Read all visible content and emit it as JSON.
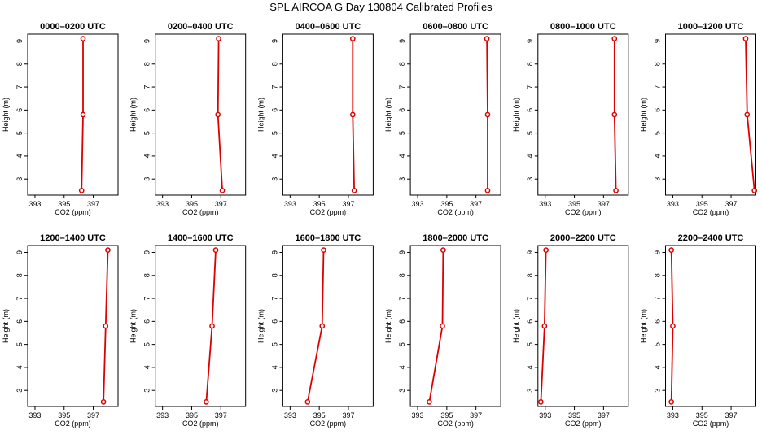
{
  "title": "SPL AIRCOA G  Day 130804  Calibrated Profiles",
  "colors": {
    "line": "#dd0000",
    "axis": "#000000"
  },
  "chart_data": [
    {
      "type": "line",
      "title": "0000–0200 UTC",
      "xlabel": "CO2 (ppm)",
      "ylabel": "Height (m)",
      "xlim": [
        392.5,
        398.7
      ],
      "ylim": [
        2.3,
        9.3
      ],
      "xticks": [
        393,
        395,
        397
      ],
      "yticks": [
        3,
        4,
        5,
        6,
        7,
        8,
        9
      ],
      "x": [
        396.2,
        396.3,
        396.3
      ],
      "y": [
        2.5,
        5.8,
        9.1
      ]
    },
    {
      "type": "line",
      "title": "0200–0400 UTC",
      "xlabel": "CO2 (ppm)",
      "ylabel": "Height (m)",
      "xlim": [
        392.5,
        398.7
      ],
      "ylim": [
        2.3,
        9.3
      ],
      "xticks": [
        393,
        395,
        397
      ],
      "yticks": [
        3,
        4,
        5,
        6,
        7,
        8,
        9
      ],
      "x": [
        397.1,
        396.8,
        396.85
      ],
      "y": [
        2.5,
        5.8,
        9.1
      ]
    },
    {
      "type": "line",
      "title": "0400–0600 UTC",
      "xlabel": "CO2 (ppm)",
      "ylabel": "Height (m)",
      "xlim": [
        392.5,
        398.7
      ],
      "ylim": [
        2.3,
        9.3
      ],
      "xticks": [
        393,
        395,
        397
      ],
      "yticks": [
        3,
        4,
        5,
        6,
        7,
        8,
        9
      ],
      "x": [
        397.4,
        397.3,
        397.3
      ],
      "y": [
        2.5,
        5.8,
        9.1
      ]
    },
    {
      "type": "line",
      "title": "0600–0800 UTC",
      "xlabel": "CO2 (ppm)",
      "ylabel": "Height (m)",
      "xlim": [
        392.5,
        398.7
      ],
      "ylim": [
        2.3,
        9.3
      ],
      "xticks": [
        393,
        395,
        397
      ],
      "yticks": [
        3,
        4,
        5,
        6,
        7,
        8,
        9
      ],
      "x": [
        397.8,
        397.8,
        397.75
      ],
      "y": [
        2.5,
        5.8,
        9.1
      ]
    },
    {
      "type": "line",
      "title": "0800–1000 UTC",
      "xlabel": "CO2 (ppm)",
      "ylabel": "Height (m)",
      "xlim": [
        392.5,
        398.7
      ],
      "ylim": [
        2.3,
        9.3
      ],
      "xticks": [
        393,
        395,
        397
      ],
      "yticks": [
        3,
        4,
        5,
        6,
        7,
        8,
        9
      ],
      "x": [
        397.85,
        397.75,
        397.75
      ],
      "y": [
        2.5,
        5.8,
        9.1
      ]
    },
    {
      "type": "line",
      "title": "1000–1200 UTC",
      "xlabel": "CO2 (ppm)",
      "ylabel": "Height (m)",
      "xlim": [
        392.5,
        398.7
      ],
      "ylim": [
        2.3,
        9.3
      ],
      "xticks": [
        393,
        395,
        397
      ],
      "yticks": [
        3,
        4,
        5,
        6,
        7,
        8,
        9
      ],
      "x": [
        398.6,
        398.1,
        398.0
      ],
      "y": [
        2.5,
        5.8,
        9.1
      ]
    },
    {
      "type": "line",
      "title": "1200–1400 UTC",
      "xlabel": "CO2 (ppm)",
      "ylabel": "Height (m)",
      "xlim": [
        392.5,
        398.7
      ],
      "ylim": [
        2.3,
        9.3
      ],
      "xticks": [
        393,
        395,
        397
      ],
      "yticks": [
        3,
        4,
        5,
        6,
        7,
        8,
        9
      ],
      "x": [
        397.7,
        397.85,
        398.0
      ],
      "y": [
        2.5,
        5.8,
        9.1
      ]
    },
    {
      "type": "line",
      "title": "1400–1600 UTC",
      "xlabel": "CO2 (ppm)",
      "ylabel": "Height (m)",
      "xlim": [
        392.5,
        398.7
      ],
      "ylim": [
        2.3,
        9.3
      ],
      "xticks": [
        393,
        395,
        397
      ],
      "yticks": [
        3,
        4,
        5,
        6,
        7,
        8,
        9
      ],
      "x": [
        396.0,
        396.4,
        396.65
      ],
      "y": [
        2.5,
        5.8,
        9.1
      ]
    },
    {
      "type": "line",
      "title": "1600–1800 UTC",
      "xlabel": "CO2 (ppm)",
      "ylabel": "Height (m)",
      "xlim": [
        392.5,
        398.7
      ],
      "ylim": [
        2.3,
        9.3
      ],
      "xticks": [
        393,
        395,
        397
      ],
      "yticks": [
        3,
        4,
        5,
        6,
        7,
        8,
        9
      ],
      "x": [
        394.2,
        395.2,
        395.3
      ],
      "y": [
        2.5,
        5.8,
        9.1
      ]
    },
    {
      "type": "line",
      "title": "1800–2000 UTC",
      "xlabel": "CO2 (ppm)",
      "ylabel": "Height (m)",
      "xlim": [
        392.5,
        398.7
      ],
      "ylim": [
        2.3,
        9.3
      ],
      "xticks": [
        393,
        395,
        397
      ],
      "yticks": [
        3,
        4,
        5,
        6,
        7,
        8,
        9
      ],
      "x": [
        393.8,
        394.7,
        394.75
      ],
      "y": [
        2.5,
        5.8,
        9.1
      ]
    },
    {
      "type": "line",
      "title": "2000–2200 UTC",
      "xlabel": "CO2 (ppm)",
      "ylabel": "Height (m)",
      "xlim": [
        392.5,
        398.7
      ],
      "ylim": [
        2.3,
        9.3
      ],
      "xticks": [
        393,
        395,
        397
      ],
      "yticks": [
        3,
        4,
        5,
        6,
        7,
        8,
        9
      ],
      "x": [
        392.7,
        392.95,
        393.05
      ],
      "y": [
        2.5,
        5.8,
        9.1
      ]
    },
    {
      "type": "line",
      "title": "2200–2400 UTC",
      "xlabel": "CO2 (ppm)",
      "ylabel": "Height (m)",
      "xlim": [
        392.5,
        398.7
      ],
      "ylim": [
        2.3,
        9.3
      ],
      "xticks": [
        393,
        395,
        397
      ],
      "yticks": [
        3,
        4,
        5,
        6,
        7,
        8,
        9
      ],
      "x": [
        392.9,
        393.0,
        392.9
      ],
      "y": [
        2.5,
        5.8,
        9.1
      ]
    }
  ]
}
